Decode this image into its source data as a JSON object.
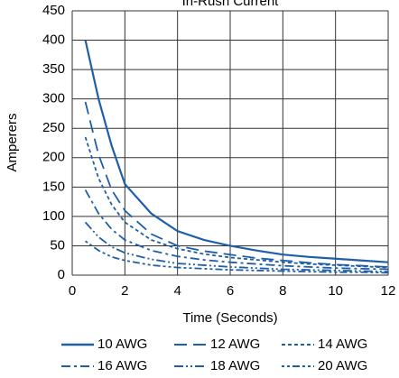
{
  "chart_data": {
    "type": "line",
    "title": "In-Rush Current",
    "x_label": "Time (Seconds)",
    "y_label": "Amperers",
    "x": [
      0.5,
      1,
      1.5,
      2,
      3,
      4,
      5,
      6,
      7,
      8,
      9,
      10,
      11,
      12
    ],
    "series": [
      {
        "name": "10 AWG",
        "color": "#1f5fa8",
        "dash": "",
        "values": [
          400,
          300,
          220,
          155,
          105,
          75,
          60,
          50,
          42,
          35,
          31,
          28,
          25,
          22
        ]
      },
      {
        "name": "12 AWG",
        "color": "#1f5fa8",
        "dash": "14 7",
        "values": [
          295,
          205,
          145,
          110,
          70,
          50,
          41,
          35,
          29,
          25,
          21,
          18,
          16,
          14
        ]
      },
      {
        "name": "14 AWG",
        "color": "#1f5fa8",
        "dash": "4 3",
        "values": [
          235,
          165,
          120,
          90,
          60,
          45,
          36,
          30,
          26,
          22,
          19,
          17,
          15,
          13
        ]
      },
      {
        "name": "16 AWG",
        "color": "#1f5fa8",
        "dash": "10 4 3 4",
        "values": [
          145,
          105,
          78,
          60,
          42,
          32,
          26,
          22,
          19,
          16,
          14,
          12,
          11,
          10
        ]
      },
      {
        "name": "18 AWG",
        "color": "#1f5fa8",
        "dash": "10 3 2 3 2 3",
        "values": [
          90,
          65,
          48,
          38,
          27,
          20,
          17,
          14,
          12,
          10,
          9,
          8,
          7,
          6
        ]
      },
      {
        "name": "20 AWG",
        "color": "#1f5fa8",
        "dash": "3 3 3 3 8 3",
        "values": [
          58,
          42,
          31,
          25,
          17,
          13,
          11,
          9,
          8,
          7,
          6,
          5,
          5,
          4
        ]
      }
    ],
    "xlim": [
      0,
      12
    ],
    "xticks": [
      0,
      2,
      4,
      6,
      8,
      10,
      12
    ],
    "ylim": [
      0,
      450
    ],
    "yticks": [
      0,
      50,
      100,
      150,
      200,
      250,
      300,
      350,
      400,
      450
    ],
    "grid": true,
    "legend": "bottom"
  }
}
